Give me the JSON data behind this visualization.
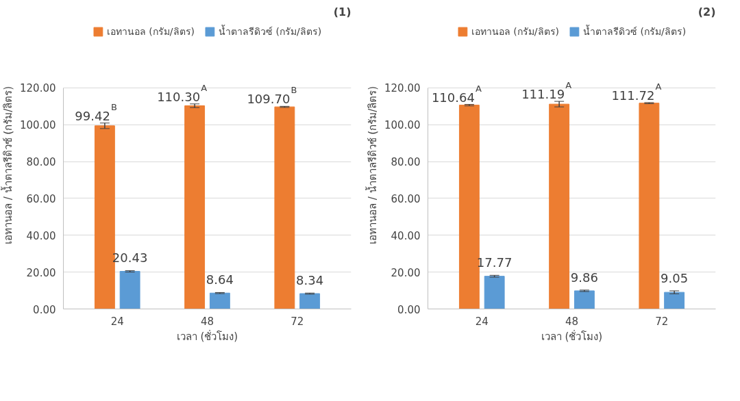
{
  "chart_data": [
    {
      "type": "bar",
      "title": "(1)",
      "xlabel": "เวลา (ชั่วโมง)",
      "ylabel": "เอทานอล / น้ำตาลรีดิวซ์ (กรัม/ลิตร)",
      "categories": [
        "24",
        "48",
        "72"
      ],
      "series": [
        {
          "name": "เอทานอล (กรัม/ลิตร)",
          "color": "#ed7d31",
          "values": [
            99.42,
            110.3,
            109.7
          ],
          "errors": [
            1.5,
            1.0,
            0.3
          ],
          "value_labels": [
            "99.42$^{B}$",
            "110.30$^{A}$",
            "109.70$^{B}$"
          ]
        },
        {
          "name": "น้ำตาลรีดิวซ์ (กรัม/ลิตร)",
          "color": "#5b9bd5",
          "values": [
            20.43,
            8.64,
            8.34
          ],
          "errors": [
            0.4,
            0.3,
            0.3
          ],
          "value_labels": [
            "20.43",
            "8.64",
            "8.34"
          ]
        }
      ],
      "ylim": [
        0,
        120
      ],
      "yticks": [
        {
          "value": 0,
          "label": "0.00"
        },
        {
          "value": 20,
          "label": "20.00"
        },
        {
          "value": 40,
          "label": "40.00"
        },
        {
          "value": 60,
          "label": "60.00"
        },
        {
          "value": 80,
          "label": "80.00"
        },
        {
          "value": 100,
          "label": "100.00"
        },
        {
          "value": 120,
          "label": "120.00"
        }
      ],
      "grid": "y",
      "legend": "top"
    },
    {
      "type": "bar",
      "title": "(2)",
      "xlabel": "เวลา (ชั่วโมง)",
      "ylabel": "เอทานอล / น้ำตาลรีดิวซ์ (กรัม/ลิตร)",
      "categories": [
        "24",
        "48",
        "72"
      ],
      "series": [
        {
          "name": "เอทานอล (กรัม/ลิตร)",
          "color": "#ed7d31",
          "values": [
            110.64,
            111.19,
            111.72
          ],
          "errors": [
            0.4,
            1.5,
            0.3
          ],
          "value_labels": [
            "110.64$^{A}$",
            "111.19$^{A}$",
            "111.72$^{A}$"
          ]
        },
        {
          "name": "น้ำตาลรีดิวซ์ (กรัม/ลิตร)",
          "color": "#5b9bd5",
          "values": [
            17.77,
            9.86,
            9.05
          ],
          "errors": [
            0.5,
            0.4,
            0.8
          ],
          "value_labels": [
            "17.77",
            "9.86",
            "9.05"
          ]
        }
      ],
      "ylim": [
        0,
        120
      ],
      "yticks": [
        {
          "value": 0,
          "label": "0.00"
        },
        {
          "value": 20,
          "label": "20.00"
        },
        {
          "value": 40,
          "label": "40.00"
        },
        {
          "value": 60,
          "label": "60.00"
        },
        {
          "value": 80,
          "label": "80.00"
        },
        {
          "value": 100,
          "label": "100.00"
        },
        {
          "value": 120,
          "label": "120.00"
        }
      ],
      "grid": "y",
      "legend": "top"
    }
  ]
}
